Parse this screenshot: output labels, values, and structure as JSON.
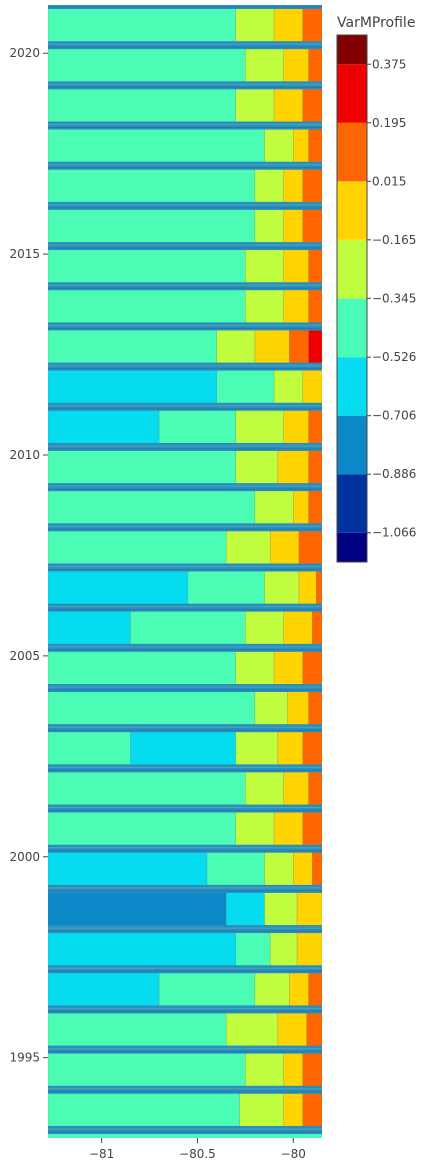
{
  "chart_data": {
    "type": "contour",
    "title": "",
    "xlabel": "",
    "ylabel": "",
    "xlim": [
      -81.28,
      -79.85
    ],
    "ylim": [
      1993.0,
      2021.2
    ],
    "x_ticks": [
      {
        "value": -81,
        "label": "−81"
      },
      {
        "value": -80.5,
        "label": "−80.5"
      },
      {
        "value": -80,
        "label": "−80"
      }
    ],
    "y_ticks": [
      {
        "value": 1995,
        "label": "1995"
      },
      {
        "value": 2000,
        "label": "2000"
      },
      {
        "value": 2005,
        "label": "2005"
      },
      {
        "value": 2010,
        "label": "2010"
      },
      {
        "value": 2015,
        "label": "2015"
      },
      {
        "value": 2020,
        "label": "2020"
      }
    ],
    "colorbar": {
      "title": "VarMProfile",
      "range": [
        -1.156,
        0.465
      ],
      "levels": [
        {
          "lo": -1.156,
          "hi": -1.066,
          "color": "#000080"
        },
        {
          "lo": -1.066,
          "hi": -0.886,
          "color": "#0033a0"
        },
        {
          "lo": -0.886,
          "hi": -0.706,
          "color": "#0a88c8"
        },
        {
          "lo": -0.706,
          "hi": -0.526,
          "color": "#05dcf0"
        },
        {
          "lo": -0.526,
          "hi": -0.345,
          "color": "#4bfcb4"
        },
        {
          "lo": -0.345,
          "hi": -0.165,
          "color": "#c0fd3e"
        },
        {
          "lo": -0.165,
          "hi": 0.015,
          "color": "#ffd400"
        },
        {
          "lo": 0.015,
          "hi": 0.195,
          "color": "#ff6600"
        },
        {
          "lo": 0.195,
          "hi": 0.375,
          "color": "#ee0000"
        },
        {
          "lo": 0.375,
          "hi": 0.465,
          "color": "#800000"
        }
      ],
      "tick_labels": [
        "0.375",
        "0.195",
        "0.015",
        "−0.165",
        "−0.345",
        "−0.526",
        "−0.706",
        "−0.886",
        "−1.066"
      ],
      "tick_values": [
        0.375,
        0.195,
        0.015,
        -0.165,
        -0.345,
        -0.526,
        -0.706,
        -0.886,
        -1.066
      ]
    },
    "band_color": "#2a8ec0",
    "bands_per_year": 1,
    "band_years": [
      1993.2,
      1994.2,
      1995.2,
      1996.2,
      1997.2,
      1998.2,
      1999.2,
      2000.2,
      2001.2,
      2002.2,
      2003.2,
      2004.2,
      2005.2,
      2006.2,
      2007.2,
      2008.2,
      2009.2,
      2010.2,
      2011.2,
      2012.2,
      2013.2,
      2014.2,
      2015.2,
      2016.2,
      2017.2,
      2018.2,
      2019.2,
      2020.2,
      2021.2
    ],
    "year_profiles": [
      {
        "year": 1993.7,
        "boundaries": [
          -80.28,
          -80.05,
          -79.95
        ],
        "levels": [
          4,
          5,
          6,
          7
        ]
      },
      {
        "year": 1994.7,
        "boundaries": [
          -80.25,
          -80.05,
          -79.95
        ],
        "levels": [
          4,
          5,
          6,
          7
        ]
      },
      {
        "year": 1995.7,
        "boundaries": [
          -80.35,
          -80.08,
          -79.93
        ],
        "levels": [
          4,
          5,
          6,
          7
        ]
      },
      {
        "year": 1996.7,
        "boundaries": [
          -80.7,
          -80.2,
          -80.02,
          -79.92
        ],
        "levels": [
          3,
          4,
          5,
          6,
          7
        ]
      },
      {
        "year": 1997.7,
        "boundaries": [
          -80.3,
          -80.12,
          -79.98
        ],
        "levels": [
          3,
          4,
          5,
          6
        ]
      },
      {
        "year": 1998.7,
        "boundaries": [
          -80.35,
          -80.15,
          -79.98
        ],
        "levels": [
          2,
          3,
          5,
          6
        ]
      },
      {
        "year": 1999.7,
        "boundaries": [
          -80.45,
          -80.15,
          -80.0,
          -79.9
        ],
        "levels": [
          3,
          4,
          5,
          6,
          7
        ]
      },
      {
        "year": 2000.7,
        "boundaries": [
          -80.3,
          -80.1,
          -79.95
        ],
        "levels": [
          4,
          5,
          6,
          7
        ]
      },
      {
        "year": 2001.7,
        "boundaries": [
          -80.25,
          -80.05,
          -79.92
        ],
        "levels": [
          4,
          5,
          6,
          7
        ]
      },
      {
        "year": 2002.7,
        "boundaries": [
          -80.85,
          -80.3,
          -80.08,
          -79.95
        ],
        "levels": [
          4,
          3,
          5,
          6,
          7
        ]
      },
      {
        "year": 2003.7,
        "boundaries": [
          -80.2,
          -80.03,
          -79.92
        ],
        "levels": [
          4,
          5,
          6,
          7
        ]
      },
      {
        "year": 2004.7,
        "boundaries": [
          -80.3,
          -80.1,
          -79.95
        ],
        "levels": [
          4,
          5,
          6,
          7
        ]
      },
      {
        "year": 2005.7,
        "boundaries": [
          -80.85,
          -80.25,
          -80.05,
          -79.9
        ],
        "levels": [
          3,
          4,
          5,
          6,
          7
        ]
      },
      {
        "year": 2006.7,
        "boundaries": [
          -80.55,
          -80.15,
          -79.97,
          -79.88
        ],
        "levels": [
          3,
          4,
          5,
          6,
          7
        ]
      },
      {
        "year": 2007.7,
        "boundaries": [
          -80.35,
          -80.12,
          -79.97
        ],
        "levels": [
          4,
          5,
          6,
          7
        ]
      },
      {
        "year": 2008.7,
        "boundaries": [
          -80.2,
          -80.0,
          -79.92
        ],
        "levels": [
          4,
          5,
          6,
          7
        ]
      },
      {
        "year": 2009.7,
        "boundaries": [
          -80.3,
          -80.08,
          -79.92
        ],
        "levels": [
          4,
          5,
          6,
          7
        ]
      },
      {
        "year": 2010.7,
        "boundaries": [
          -80.7,
          -80.3,
          -80.05,
          -79.92
        ],
        "levels": [
          3,
          4,
          5,
          6,
          7
        ]
      },
      {
        "year": 2011.7,
        "boundaries": [
          -80.4,
          -80.1,
          -79.95
        ],
        "levels": [
          3,
          4,
          5,
          6
        ]
      },
      {
        "year": 2012.7,
        "boundaries": [
          -80.4,
          -80.2,
          -80.02,
          -79.92
        ],
        "levels": [
          4,
          5,
          6,
          7,
          8
        ]
      },
      {
        "year": 2013.7,
        "boundaries": [
          -80.25,
          -80.05,
          -79.92
        ],
        "levels": [
          4,
          5,
          6,
          7
        ]
      },
      {
        "year": 2014.7,
        "boundaries": [
          -80.25,
          -80.05,
          -79.92
        ],
        "levels": [
          4,
          5,
          6,
          7
        ]
      },
      {
        "year": 2015.7,
        "boundaries": [
          -80.2,
          -80.05,
          -79.95
        ],
        "levels": [
          4,
          5,
          6,
          7
        ]
      },
      {
        "year": 2016.7,
        "boundaries": [
          -80.2,
          -80.05,
          -79.95
        ],
        "levels": [
          4,
          5,
          6,
          7
        ]
      },
      {
        "year": 2017.7,
        "boundaries": [
          -80.15,
          -80.0,
          -79.92
        ],
        "levels": [
          4,
          5,
          6,
          7
        ]
      },
      {
        "year": 2018.7,
        "boundaries": [
          -80.3,
          -80.1,
          -79.95
        ],
        "levels": [
          4,
          5,
          6,
          7
        ]
      },
      {
        "year": 2019.7,
        "boundaries": [
          -80.25,
          -80.05,
          -79.92
        ],
        "levels": [
          4,
          5,
          6,
          7
        ]
      },
      {
        "year": 2020.7,
        "boundaries": [
          -80.3,
          -80.1,
          -79.95
        ],
        "levels": [
          4,
          5,
          6,
          7
        ]
      }
    ]
  }
}
